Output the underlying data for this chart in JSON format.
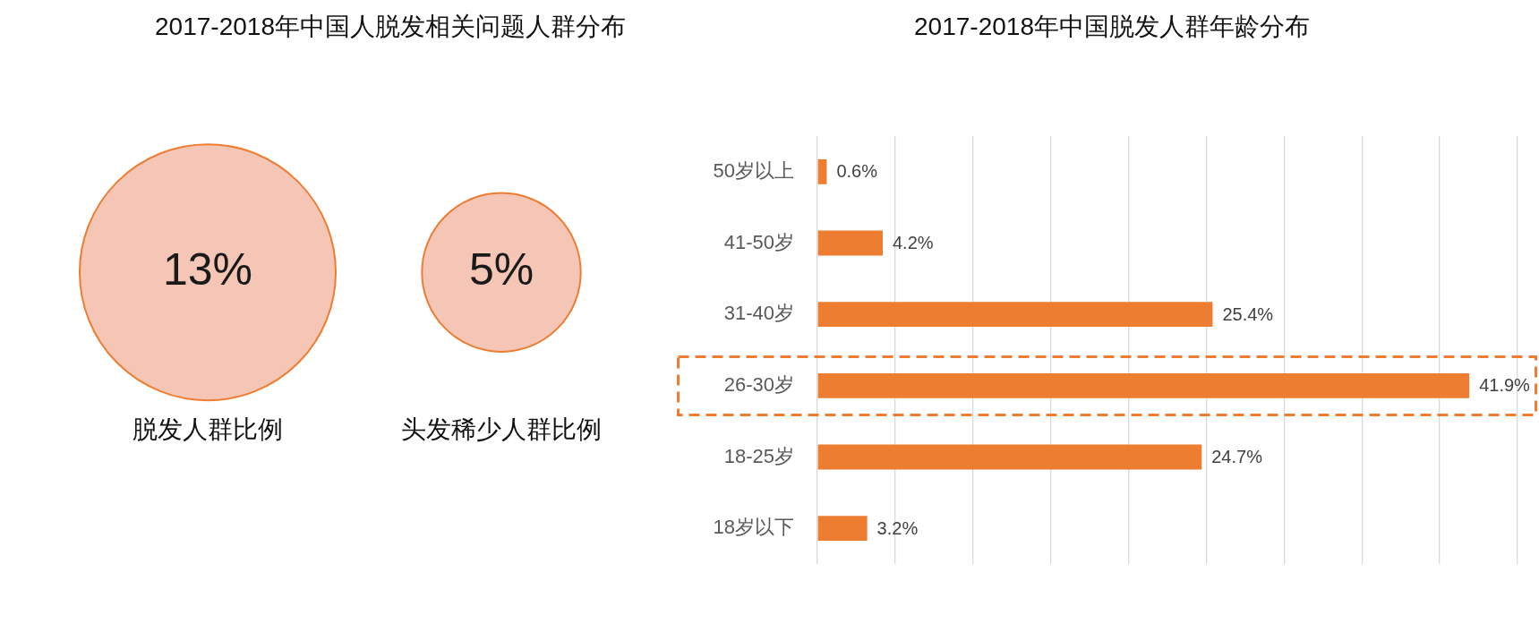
{
  "chart_data": [
    {
      "type": "other",
      "title": "2017-2018年中国人脱发相关问题人群分布",
      "categories": [
        "脱发人群比例",
        "头发稀少人群比例"
      ],
      "values": [
        13,
        5
      ],
      "value_labels": [
        "13%",
        "5%"
      ],
      "color": "#f5c6b5"
    },
    {
      "type": "bar",
      "title": "2017-2018年中国脱发人群年龄分布",
      "orientation": "horizontal",
      "categories": [
        "50岁以上",
        "41-50岁",
        "31-40岁",
        "26-30岁",
        "18-25岁",
        "18岁以下"
      ],
      "values": [
        0.6,
        4.2,
        25.4,
        41.9,
        24.7,
        3.2
      ],
      "value_labels": [
        "0.6%",
        "4.2%",
        "25.4%",
        "41.9%",
        "24.7%",
        "3.2%"
      ],
      "color": "#ed7d31",
      "xlim": [
        0,
        45
      ],
      "xticks": [
        {
          "value": 0,
          "label": null
        },
        {
          "value": 5,
          "label": null
        },
        {
          "value": 10,
          "label": null
        },
        {
          "value": 15,
          "label": null
        },
        {
          "value": 20,
          "label": null
        },
        {
          "value": 25,
          "label": null
        },
        {
          "value": 30,
          "label": null
        },
        {
          "value": 35,
          "label": null
        },
        {
          "value": 40,
          "label": null
        },
        {
          "value": 45,
          "label": null
        }
      ],
      "grid": "x",
      "tick_labels": "y"
    }
  ]
}
